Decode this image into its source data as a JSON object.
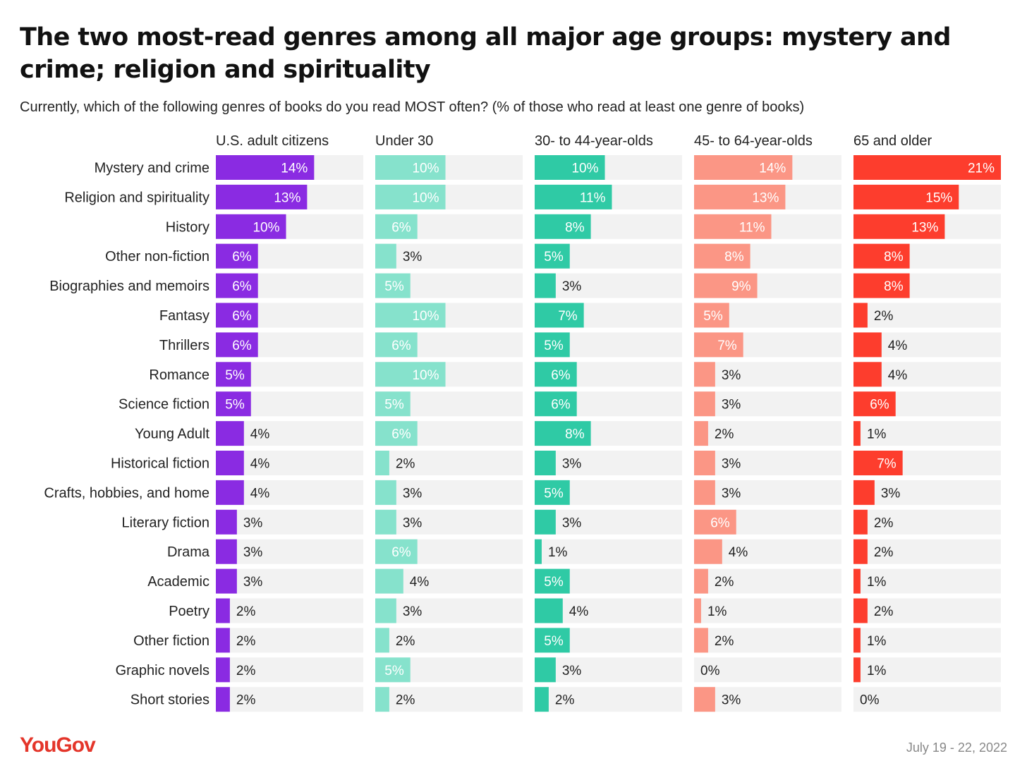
{
  "title": "The two most-read genres among all major age groups: mystery and crime; religion and spirituality",
  "subtitle": "Currently, which of the following genres of books do you read MOST often? (% of those who read at least one genre of books)",
  "brand": "YouGov",
  "date": "July 19 - 22, 2022",
  "colors": {
    "track": "#f2f2f2",
    "U.S. adult citizens": "#8a2be2",
    "Under 30": "#86e2cc",
    "30- to 44-year-olds": "#2fcaa5",
    "45- to 64-year-olds": "#fb9685",
    "65 and older": "#fd3d2d",
    "brand": "#e4352a"
  },
  "chart_data": {
    "type": "bar",
    "orientation": "horizontal",
    "layout": "small-multiples",
    "unit": "%",
    "xlim": [
      0,
      21
    ],
    "categories": [
      "Mystery and crime",
      "Religion and spirituality",
      "History",
      "Other non-fiction",
      "Biographies and memoirs",
      "Fantasy",
      "Thrillers",
      "Romance",
      "Science fiction",
      "Young Adult",
      "Historical fiction",
      "Crafts, hobbies, and home",
      "Literary fiction",
      "Drama",
      "Academic",
      "Poetry",
      "Other fiction",
      "Graphic novels",
      "Short stories"
    ],
    "series": [
      {
        "name": "U.S. adult citizens",
        "values": [
          14,
          13,
          10,
          6,
          6,
          6,
          6,
          5,
          5,
          4,
          4,
          4,
          3,
          3,
          3,
          2,
          2,
          2,
          2
        ]
      },
      {
        "name": "Under 30",
        "values": [
          10,
          10,
          6,
          3,
          5,
          10,
          6,
          10,
          5,
          6,
          2,
          3,
          3,
          6,
          4,
          3,
          2,
          5,
          2
        ]
      },
      {
        "name": "30- to 44-year-olds",
        "values": [
          10,
          11,
          8,
          5,
          3,
          7,
          5,
          6,
          6,
          8,
          3,
          5,
          3,
          1,
          5,
          4,
          5,
          3,
          2
        ]
      },
      {
        "name": "45- to 64-year-olds",
        "values": [
          14,
          13,
          11,
          8,
          9,
          5,
          7,
          3,
          3,
          2,
          3,
          3,
          6,
          4,
          2,
          1,
          2,
          0,
          3
        ]
      },
      {
        "name": "65 and older",
        "values": [
          21,
          15,
          13,
          8,
          8,
          2,
          4,
          4,
          6,
          1,
          7,
          3,
          2,
          2,
          1,
          2,
          1,
          1,
          0
        ]
      }
    ]
  }
}
